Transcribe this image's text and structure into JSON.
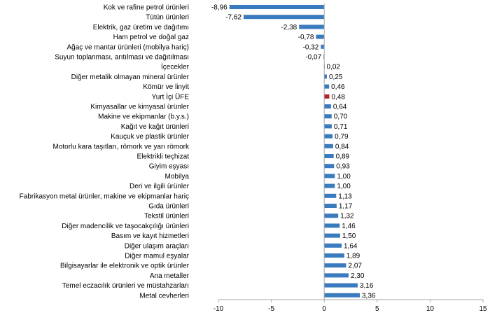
{
  "chart_data": {
    "type": "bar",
    "orientation": "horizontal",
    "categories": [
      "Kok ve rafine petrol ürünleri",
      "Tütün ürünleri",
      "Elektrik, gaz üretim ve dağıtımı",
      "Ham petrol ve doğal gaz",
      "Ağaç ve mantar ürünleri (mobilya hariç)",
      "Suyun toplanması, arıtılması ve dağıtılması",
      "İçecekler",
      "Diğer metalik olmayan mineral ürünler",
      "Kömür ve linyit",
      "Yurt İçi ÜFE",
      "Kimyasallar ve kimyasal ürünler",
      "Makine ve ekipmanlar (b.y.s.)",
      "Kağıt ve kağıt ürünleri",
      "Kauçuk ve plastik ürünler",
      "Motorlu kara taşıtları, römork ve yarı römork",
      "Elektrikli teçhizat",
      "Giyim eşyası",
      "Mobilya",
      "Deri ve ilgili ürünler",
      "Fabrikasyon metal ürünler, makine ve ekipmanlar hariç",
      "Gıda ürünleri",
      "Tekstil ürünleri",
      "Diğer madencilik ve taşocakçılığı ürünleri",
      "Basım ve kayıt hizmetleri",
      "Diğer ulaşım araçları",
      "Diğer mamul eşyalar",
      "Bilgisayarlar ile elektronik ve optik ürünler",
      "Ana metaller",
      "Temel eczacılık ürünleri ve müstahzarları",
      "Metal cevherleri"
    ],
    "values": [
      -8.96,
      -7.62,
      -2.38,
      -0.78,
      -0.32,
      -0.07,
      0.02,
      0.25,
      0.46,
      0.48,
      0.64,
      0.7,
      0.71,
      0.79,
      0.84,
      0.89,
      0.93,
      1.0,
      1.0,
      1.13,
      1.17,
      1.32,
      1.46,
      1.5,
      1.64,
      1.89,
      2.07,
      2.3,
      3.16,
      3.36
    ],
    "value_labels": [
      "-8,96",
      "-7,62",
      "-2,38",
      "-0,78",
      "-0,32",
      "-0,07",
      "0,02",
      "0,25",
      "0,46",
      "0,48",
      "0,64",
      "0,70",
      "0,71",
      "0,79",
      "0,84",
      "0,89",
      "0,93",
      "1,00",
      "1,00",
      "1,13",
      "1,17",
      "1,32",
      "1,46",
      "1,50",
      "1,64",
      "1,89",
      "2,07",
      "2,30",
      "3,16",
      "3,36"
    ],
    "highlight_index": 9,
    "xlim": [
      -10,
      15
    ],
    "xticks": [
      -10,
      -5,
      0,
      5,
      10,
      15
    ],
    "xtick_labels": [
      "-10",
      "-5",
      "0",
      "5",
      "10",
      "15"
    ],
    "grid": false,
    "colors": {
      "bar": "#3a7bbf",
      "highlight": "#b22222",
      "axis": "#a6a6a6"
    }
  }
}
